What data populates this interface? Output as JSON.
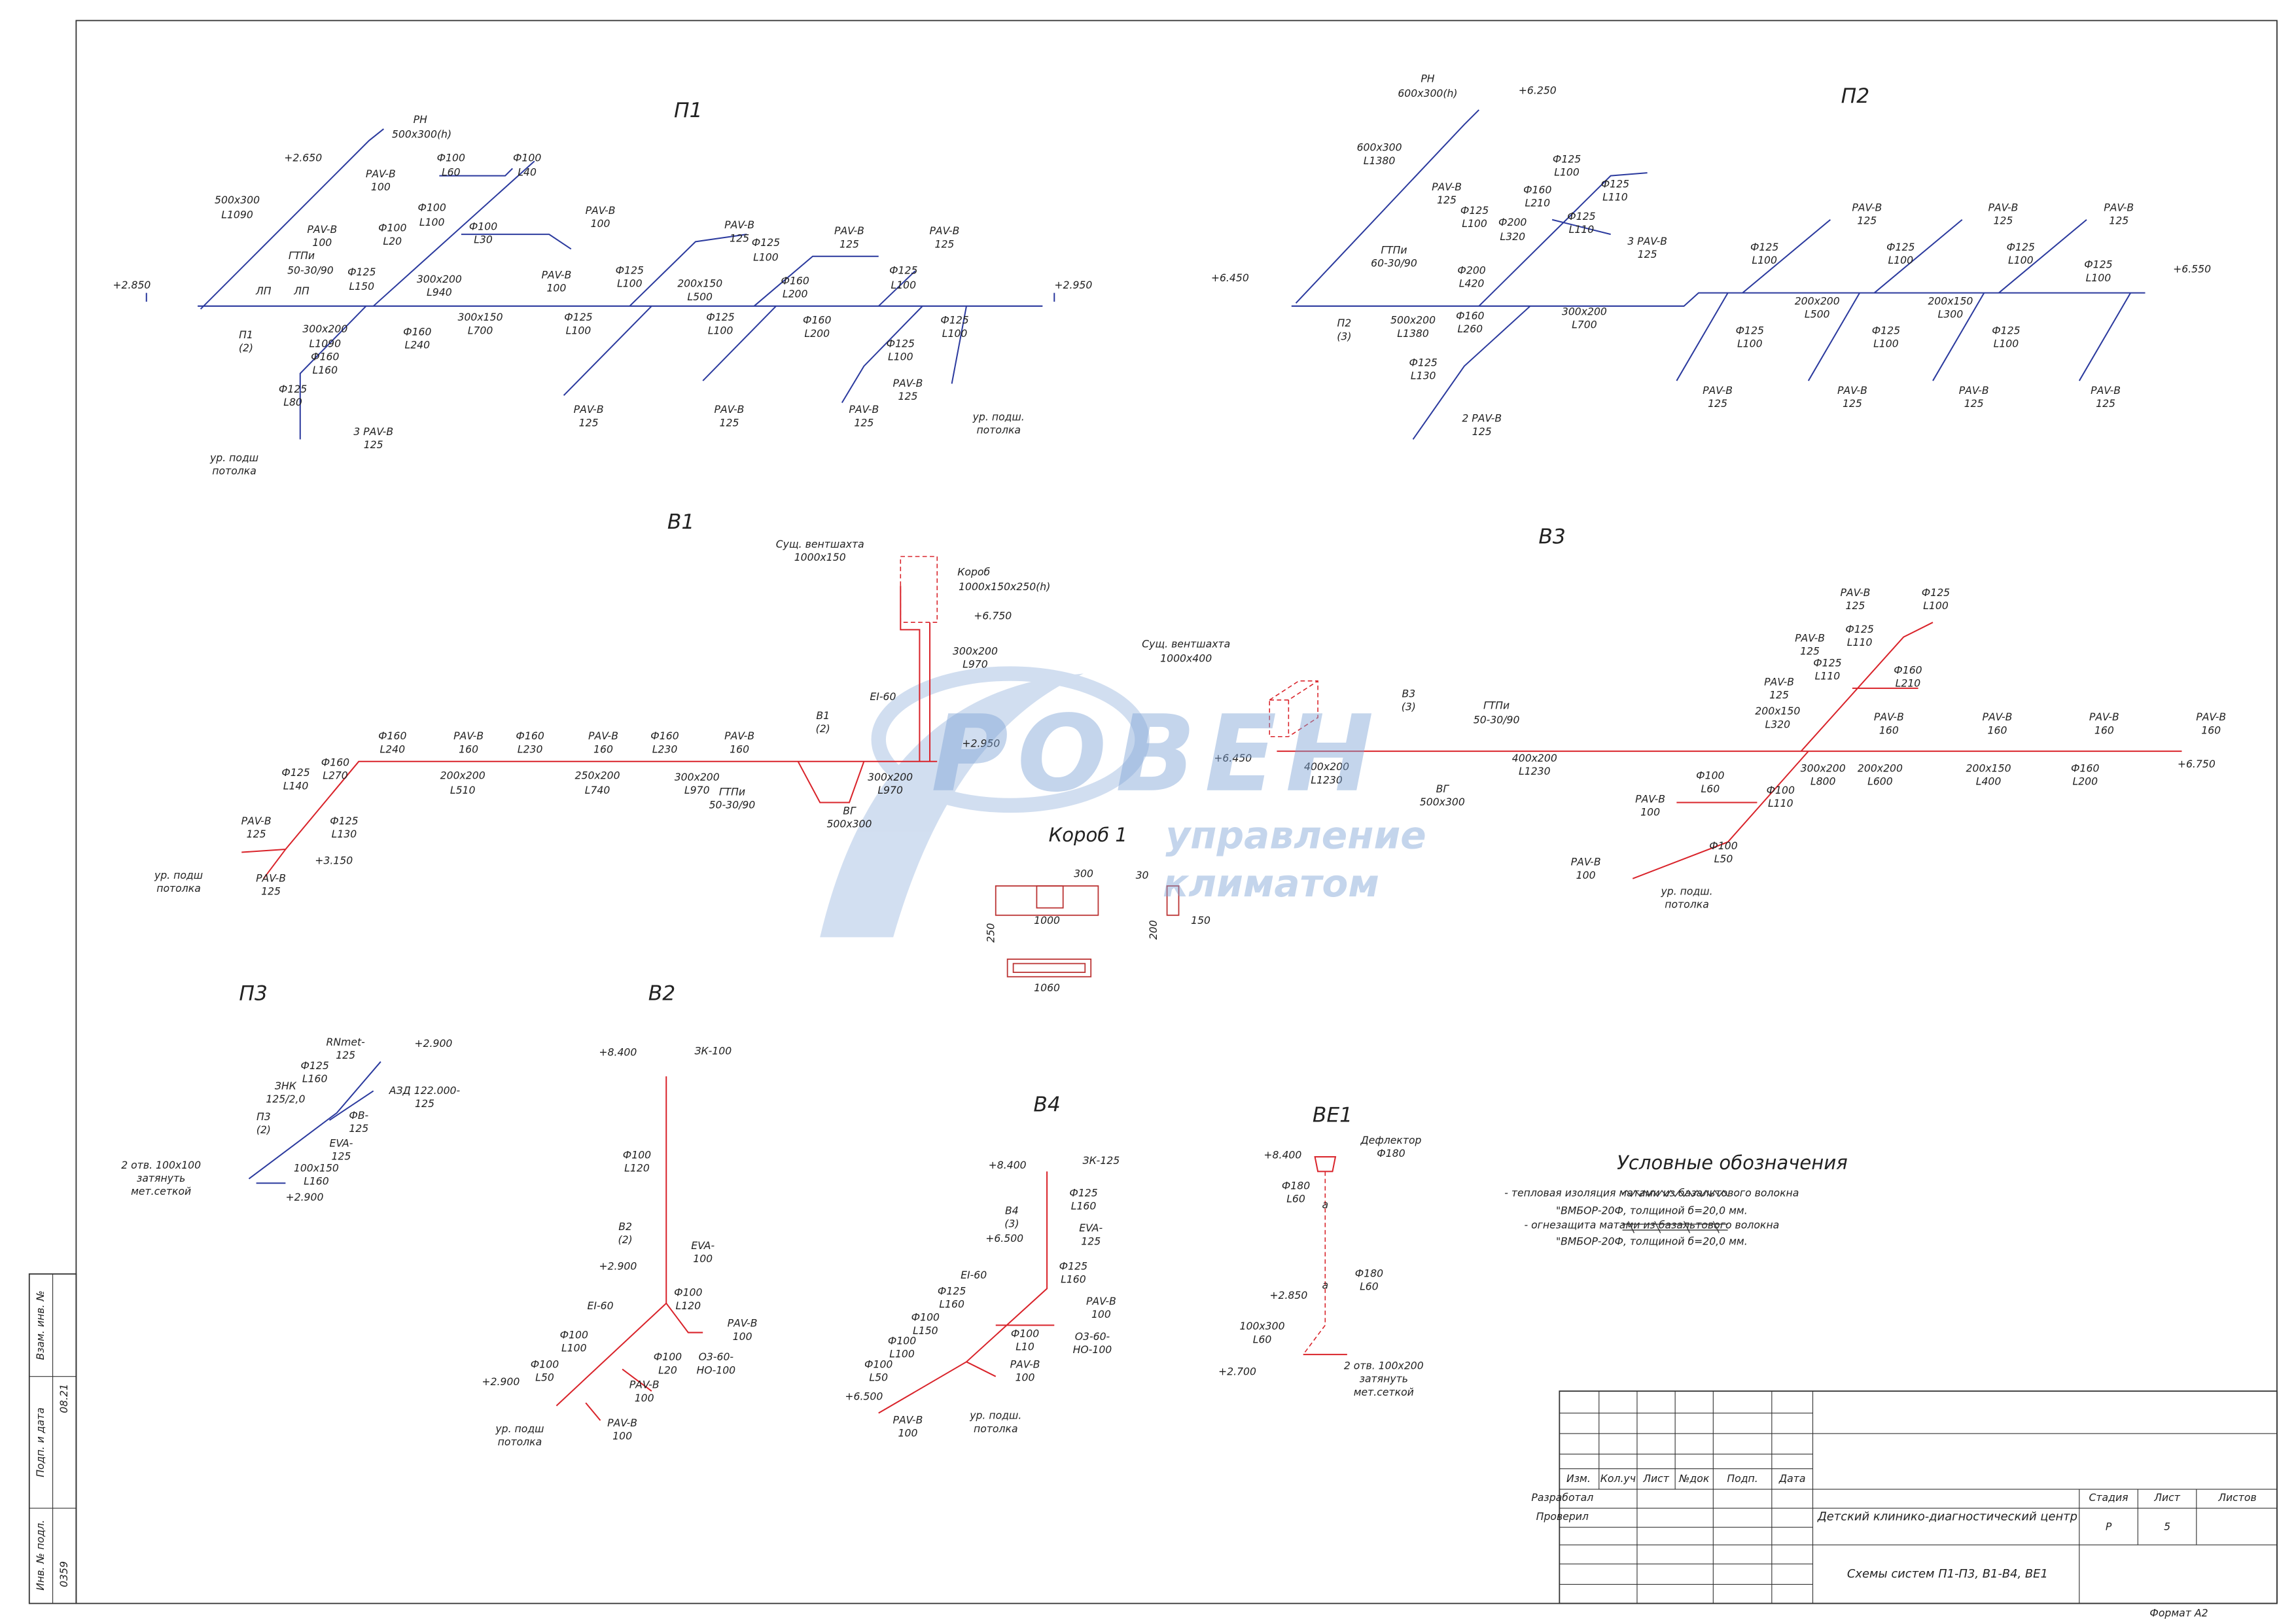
{
  "systems": [
    {
      "title": "П1",
      "labels": [
        "РН",
        "500x300(h)",
        "+2.650",
        "Ф100",
        "L60",
        "Ф100",
        "L40",
        "РАV-В",
        "100",
        "500x300",
        "L1090",
        "Ф100",
        "L100",
        "РАV-В",
        "100",
        "РАV-В",
        "100",
        "Ф100",
        "L20",
        "Ф100",
        "L30",
        "ГТПи",
        "50-30/90",
        "Ф125",
        "L150",
        "300x200",
        "L940",
        "РАV-В",
        "100",
        "+2.850",
        "300x200",
        "L1090",
        "Ф160",
        "L240",
        "300x150",
        "L700",
        "П1",
        "(2)",
        "Ф160",
        "L160",
        "Ф125",
        "L80",
        "3 РАV-В",
        "125",
        "ур. подш",
        "потолка",
        "РАV-В",
        "125",
        "Ф125",
        "L100",
        "РАV-В",
        "125",
        "РАV-В",
        "125",
        "Ф125",
        "L100",
        "200x150",
        "L500",
        "Ф160",
        "L200",
        "Ф125",
        "L100",
        "+2.950",
        "Ф125",
        "L100",
        "Ф125",
        "L100",
        "Ф160",
        "L200",
        "Ф125",
        "L100",
        "Ф125",
        "L100",
        "РАV-В",
        "125",
        "РАV-В",
        "125",
        "РАV-В",
        "125",
        "РАV-В",
        "125",
        "ур. подш.",
        "потолка",
        "ЛП",
        "ЛП"
      ]
    },
    {
      "title": "П2",
      "labels": [
        "РН",
        "600x300(h)",
        "+6.250",
        "600x300",
        "L1380",
        "РАV-В",
        "125",
        "Ф125",
        "L100",
        "Ф125",
        "L110",
        "Ф160",
        "L210",
        "Ф125",
        "L100",
        "Ф200",
        "L320",
        "Ф125",
        "L110",
        "3 РАV-В",
        "125",
        "ГТПи",
        "60-30/90",
        "Ф200",
        "L420",
        "+6.450",
        "П2",
        "(3)",
        "500x200",
        "L1380",
        "Ф160",
        "L260",
        "300x200",
        "L700",
        "Ф125",
        "L130",
        "2 РАV-В",
        "125",
        "РАV-В",
        "125",
        "РАV-В",
        "125",
        "РАV-В",
        "125",
        "Ф125",
        "L100",
        "Ф125",
        "L100",
        "Ф125",
        "L100",
        "Ф125",
        "L100",
        "+6.550",
        "200x200",
        "L500",
        "200x150",
        "L300",
        "Ф125",
        "L100",
        "Ф125",
        "L100",
        "Ф125",
        "L100",
        "РАV-В",
        "125",
        "РАV-В",
        "125",
        "РАV-В",
        "125",
        "РАV-В",
        "125"
      ]
    },
    {
      "title": "В1",
      "labels": [
        "Сущ. вентшахта",
        "1000x150",
        "Короб",
        "1000x150x250(h)",
        "+6.750",
        "300x200",
        "L970",
        "EI-60",
        "Ф160",
        "L240",
        "РАV-В",
        "160",
        "Ф160",
        "L230",
        "РАV-В",
        "160",
        "Ф160",
        "L230",
        "РАV-В",
        "160",
        "В1",
        "(2)",
        "+2.950",
        "Ф160",
        "L270",
        "Ф125",
        "L140",
        "200x200",
        "L510",
        "250x200",
        "L740",
        "300x200",
        "L970",
        "ГТПи",
        "50-30/90",
        "300x200",
        "L970",
        "ВГ",
        "500x300",
        "РАV-В",
        "125",
        "Ф125",
        "L130",
        "+3.150",
        "ур. подш",
        "потолка",
        "РАV-В",
        "125"
      ]
    },
    {
      "title": "В3",
      "labels": [
        "Сущ. вентшахта",
        "1000x400",
        "В3",
        "(3)",
        "ГТПи",
        "50-30/90",
        "+6.450",
        "400x200",
        "L1230",
        "ВГ",
        "500x300",
        "400x200",
        "L1230",
        "РАV-В",
        "125",
        "Ф125",
        "L100",
        "РАV-В",
        "125",
        "Ф125",
        "L110",
        "Ф125",
        "L110",
        "Ф160",
        "L210",
        "РАV-В",
        "125",
        "200x150",
        "L320",
        "РАV-В",
        "160",
        "РАV-В",
        "160",
        "РАV-В",
        "160",
        "РАV-В",
        "160",
        "+6.750",
        "Ф100",
        "L60",
        "300x200",
        "L800",
        "200x200",
        "L600",
        "200x150",
        "L400",
        "Ф160",
        "L200",
        "Ф100",
        "L110",
        "РАV-В",
        "100",
        "Ф100",
        "L50",
        "РАV-В",
        "100",
        "ур. подш.",
        "потолка"
      ]
    },
    {
      "title": "П3",
      "labels": [
        "RNmet-",
        "125",
        "+2.900",
        "Ф125",
        "L160",
        "АЗД 122.000-",
        "125",
        "ЗНК",
        "125/2,0",
        "ФВ-",
        "125",
        "П3",
        "(2)",
        "EVA-",
        "125",
        "2 отв. 100x100",
        "затянуть",
        "мет.сеткой",
        "100x150",
        "L160",
        "+2.900"
      ]
    },
    {
      "title": "В2",
      "labels": [
        "+8.400",
        "ЗК-100",
        "Ф100",
        "L120",
        "В2",
        "(2)",
        "EVA-",
        "100",
        "+2.900",
        "Ф100",
        "L120",
        "EI-60",
        "РАV-В",
        "100",
        "Ф100",
        "L100",
        "Ф100",
        "L20",
        "O3-60-",
        "НО-100",
        "Ф100",
        "L50",
        "+2.900",
        "РАV-В",
        "100",
        "РАV-В",
        "100",
        "ур. подш",
        "потолка"
      ]
    },
    {
      "title": "В4",
      "labels": [
        "+8.400",
        "ЗК-125",
        "Ф125",
        "L160",
        "В4",
        "(3)",
        "EVA-",
        "125",
        "+6.500",
        "Ф125",
        "L160",
        "EI-60",
        "РАV-В",
        "100",
        "Ф125",
        "L160",
        "Ф100",
        "L150",
        "Ф100",
        "L10",
        "O3-60-",
        "НО-100",
        "Ф100",
        "L100",
        "РАV-В",
        "100",
        "Ф100",
        "L50",
        "+6.500",
        "РАV-В",
        "100",
        "ур. подш.",
        "потолка"
      ]
    },
    {
      "title": "ВЕ1",
      "labels": [
        "Дефлектор",
        "Ф180",
        "+8.400",
        "Ф180",
        "L60",
        "а",
        "Ф180",
        "L60",
        "а",
        "+2.850",
        "100x300",
        "L60",
        "+2.700",
        "2 отв. 100x200",
        "затянуть",
        "мет.сеткой"
      ]
    }
  ],
  "box_section": {
    "title": "Короб 1",
    "dims": [
      "300",
      "250",
      "1000",
      "1060",
      "30",
      "200",
      "150"
    ]
  },
  "watermark": [
    "РОВЕН",
    "управление",
    "климатом"
  ],
  "legend": {
    "title": "Условные обозначения",
    "items": [
      "- тепловая изоляция матами из базальтового волокна",
      "\"ВМБОР-20Ф, толщиной б=20,0 мм.",
      "- огнезащита матами из базальтового волокна",
      "\"ВМБОР-20Ф, толщиной б=20,0 мм."
    ]
  },
  "title_block": {
    "headers": [
      "Изм.",
      "Кол.уч",
      "Лист",
      "№док",
      "Подп.",
      "Дата"
    ],
    "developed": "Разработал",
    "checked": "Проверил",
    "project": "Детский клинико-диагностический центр",
    "stage_header": "Стадия",
    "sheet_header": "Лист",
    "sheets_header": "Листов",
    "stage": "Р",
    "sheet": "5",
    "drawing": "Схемы систем П1-П3, В1-В4, ВЕ1"
  },
  "side_stamp": {
    "fields": [
      "Взам. инв. №",
      "Подп. и дата",
      "Инв. № подл."
    ],
    "date": "08.21",
    "number": "0359"
  },
  "format": "Формат А2"
}
